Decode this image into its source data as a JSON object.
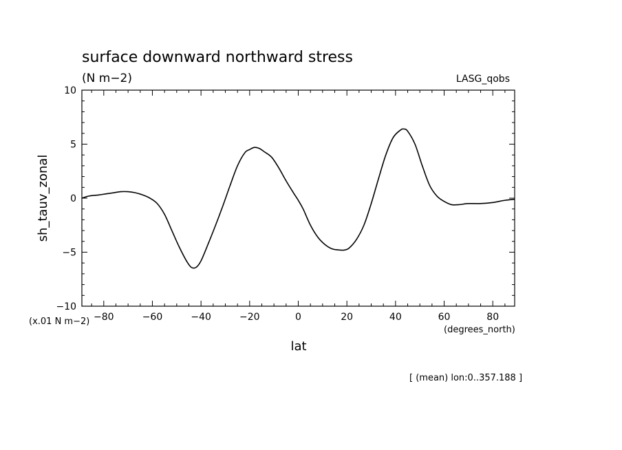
{
  "chart_data": {
    "type": "line",
    "title": "surface downward northward stress",
    "units": "(N m−2)",
    "dataset_label": "LASG_qobs",
    "ylabel": "sh_tauv_zonal",
    "xlabel": "lat",
    "y_scale_note": "(x.01 N m−2)",
    "x_unit_note": "(degrees_north)",
    "footer": "[ (mean) lon:0..357.188 ]",
    "xlim": [
      -89,
      89
    ],
    "ylim": [
      -10,
      10
    ],
    "x_ticks": [
      -80,
      -60,
      -40,
      -20,
      0,
      20,
      40,
      60,
      80
    ],
    "x_tick_labels": [
      "−80",
      "−60",
      "−40",
      "−20",
      "0",
      "20",
      "40",
      "60",
      "80"
    ],
    "y_ticks": [
      -10,
      -5,
      0,
      5,
      10
    ],
    "y_tick_labels": [
      "−10",
      "−5",
      "0",
      "5",
      "10"
    ],
    "series": [
      {
        "name": "sh_tauv_zonal",
        "x": [
          -89,
          -86,
          -82,
          -79,
          -76,
          -73,
          -70,
          -67,
          -64,
          -61,
          -58,
          -55,
          -52,
          -49,
          -46,
          -44,
          -42,
          -40,
          -37,
          -34,
          -31,
          -28,
          -25,
          -22,
          -20,
          -18,
          -16,
          -14,
          -11,
          -8,
          -5,
          -2,
          0,
          2,
          5,
          8,
          11,
          14,
          17,
          19,
          21,
          24,
          27,
          30,
          33,
          36,
          39,
          42,
          43.5,
          45,
          48,
          51,
          54,
          57,
          60,
          63,
          66,
          70,
          75,
          80,
          85,
          89
        ],
        "values": [
          0.0,
          0.2,
          0.3,
          0.4,
          0.5,
          0.6,
          0.6,
          0.5,
          0.3,
          0.0,
          -0.5,
          -1.5,
          -3.0,
          -4.5,
          -5.8,
          -6.4,
          -6.4,
          -5.8,
          -4.2,
          -2.5,
          -0.7,
          1.2,
          3.0,
          4.2,
          4.5,
          4.7,
          4.6,
          4.3,
          3.8,
          2.8,
          1.6,
          0.5,
          -0.2,
          -1.0,
          -2.5,
          -3.6,
          -4.3,
          -4.7,
          -4.8,
          -4.8,
          -4.6,
          -3.8,
          -2.5,
          -0.5,
          1.8,
          4.0,
          5.6,
          6.3,
          6.4,
          6.2,
          5.0,
          3.0,
          1.2,
          0.2,
          -0.3,
          -0.6,
          -0.6,
          -0.5,
          -0.5,
          -0.4,
          -0.2,
          -0.1
        ]
      }
    ]
  }
}
